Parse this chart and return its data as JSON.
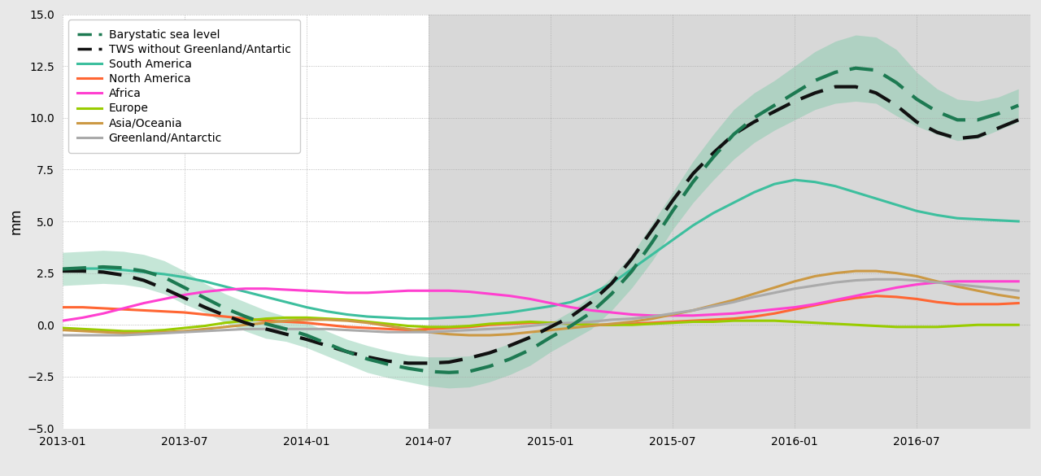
{
  "ylabel": "mm",
  "ylim": [
    -5.0,
    15.0
  ],
  "yticks": [
    -5.0,
    -2.5,
    0.0,
    2.5,
    5.0,
    7.5,
    10.0,
    12.5,
    15.0
  ],
  "xtick_labels": [
    "2013-01",
    "2013-07",
    "2014-01",
    "2014-07",
    "2015-01",
    "2015-07",
    "2016-01",
    "2016-07"
  ],
  "figure_bg_color": "#e8e8e8",
  "plot_bg_color": "#ffffff",
  "shaded_bg_color": "#d8d8d8",
  "fill_color": "#7fc9a8",
  "fill_alpha": 0.45,
  "dashed_green_color": "#1d7a52",
  "dashed_black_color": "#111111",
  "south_america_color": "#3dbf9e",
  "north_america_color": "#ff6633",
  "africa_color": "#ff40d0",
  "europe_color": "#99cc00",
  "asia_oceania_color": "#cc9944",
  "greenland_color": "#aaaaaa",
  "barystatic_mean": [
    2.7,
    2.75,
    2.8,
    2.75,
    2.6,
    2.3,
    1.8,
    1.3,
    0.8,
    0.4,
    0.05,
    -0.2,
    -0.5,
    -0.9,
    -1.3,
    -1.65,
    -1.9,
    -2.1,
    -2.25,
    -2.3,
    -2.25,
    -2.0,
    -1.65,
    -1.2,
    -0.6,
    -0.05,
    0.6,
    1.5,
    2.6,
    4.0,
    5.5,
    6.9,
    8.1,
    9.2,
    10.0,
    10.6,
    11.2,
    11.8,
    12.2,
    12.4,
    12.3,
    11.7,
    10.9,
    10.3,
    9.9,
    9.9,
    10.2,
    10.6
  ],
  "barystatic_upper": [
    3.5,
    3.55,
    3.6,
    3.55,
    3.4,
    3.1,
    2.6,
    2.0,
    1.5,
    1.1,
    0.7,
    0.4,
    0.1,
    -0.3,
    -0.7,
    -1.0,
    -1.25,
    -1.45,
    -1.55,
    -1.55,
    -1.5,
    -1.25,
    -0.9,
    -0.45,
    0.1,
    0.65,
    1.4,
    2.3,
    3.4,
    4.9,
    6.4,
    7.9,
    9.2,
    10.4,
    11.2,
    11.8,
    12.5,
    13.2,
    13.7,
    14.0,
    13.9,
    13.3,
    12.2,
    11.4,
    10.9,
    10.8,
    11.0,
    11.4
  ],
  "barystatic_lower": [
    1.9,
    1.95,
    2.0,
    1.95,
    1.8,
    1.5,
    1.0,
    0.6,
    0.1,
    -0.3,
    -0.65,
    -0.8,
    -1.1,
    -1.5,
    -1.9,
    -2.3,
    -2.55,
    -2.75,
    -2.95,
    -3.05,
    -3.0,
    -2.75,
    -2.4,
    -1.95,
    -1.3,
    -0.75,
    -0.2,
    0.7,
    1.8,
    3.1,
    4.6,
    5.9,
    7.0,
    8.0,
    8.8,
    9.4,
    9.9,
    10.4,
    10.7,
    10.8,
    10.7,
    10.1,
    9.6,
    9.2,
    8.9,
    9.0,
    9.4,
    9.8
  ],
  "tws_no_greenland": [
    2.6,
    2.6,
    2.55,
    2.4,
    2.15,
    1.75,
    1.3,
    0.85,
    0.45,
    0.1,
    -0.2,
    -0.45,
    -0.7,
    -1.0,
    -1.3,
    -1.55,
    -1.75,
    -1.85,
    -1.85,
    -1.8,
    -1.6,
    -1.35,
    -1.0,
    -0.6,
    -0.1,
    0.4,
    1.1,
    2.0,
    3.2,
    4.6,
    6.0,
    7.3,
    8.3,
    9.2,
    9.8,
    10.3,
    10.8,
    11.2,
    11.5,
    11.5,
    11.2,
    10.6,
    9.8,
    9.3,
    9.0,
    9.1,
    9.5,
    9.9
  ],
  "south_america": [
    2.7,
    2.72,
    2.72,
    2.65,
    2.55,
    2.45,
    2.3,
    2.1,
    1.85,
    1.6,
    1.35,
    1.1,
    0.85,
    0.65,
    0.5,
    0.4,
    0.35,
    0.3,
    0.3,
    0.35,
    0.4,
    0.5,
    0.6,
    0.75,
    0.9,
    1.1,
    1.5,
    2.0,
    2.7,
    3.4,
    4.1,
    4.8,
    5.4,
    5.9,
    6.4,
    6.8,
    7.0,
    6.9,
    6.7,
    6.4,
    6.1,
    5.8,
    5.5,
    5.3,
    5.15,
    5.1,
    5.05,
    5.0
  ],
  "north_america": [
    0.85,
    0.85,
    0.8,
    0.75,
    0.7,
    0.65,
    0.6,
    0.5,
    0.4,
    0.3,
    0.2,
    0.15,
    0.1,
    0.0,
    -0.1,
    -0.15,
    -0.2,
    -0.25,
    -0.2,
    -0.15,
    -0.1,
    0.0,
    0.05,
    0.1,
    0.1,
    0.05,
    0.0,
    0.0,
    0.05,
    0.1,
    0.15,
    0.2,
    0.25,
    0.3,
    0.4,
    0.55,
    0.75,
    0.95,
    1.15,
    1.3,
    1.4,
    1.35,
    1.25,
    1.1,
    1.0,
    1.0,
    1.0,
    1.05
  ],
  "africa": [
    0.2,
    0.35,
    0.55,
    0.8,
    1.05,
    1.25,
    1.45,
    1.6,
    1.7,
    1.75,
    1.75,
    1.7,
    1.65,
    1.6,
    1.55,
    1.55,
    1.6,
    1.65,
    1.65,
    1.65,
    1.6,
    1.5,
    1.4,
    1.25,
    1.05,
    0.85,
    0.7,
    0.6,
    0.5,
    0.45,
    0.45,
    0.45,
    0.5,
    0.55,
    0.65,
    0.75,
    0.85,
    1.0,
    1.2,
    1.4,
    1.6,
    1.8,
    1.95,
    2.05,
    2.1,
    2.1,
    2.1,
    2.1
  ],
  "europe": [
    -0.15,
    -0.2,
    -0.25,
    -0.3,
    -0.3,
    -0.25,
    -0.15,
    -0.05,
    0.1,
    0.2,
    0.3,
    0.35,
    0.35,
    0.3,
    0.25,
    0.15,
    0.05,
    -0.05,
    -0.1,
    -0.1,
    -0.05,
    0.05,
    0.1,
    0.15,
    0.1,
    0.05,
    0.0,
    0.0,
    0.0,
    0.05,
    0.1,
    0.15,
    0.15,
    0.2,
    0.2,
    0.2,
    0.15,
    0.1,
    0.05,
    0.0,
    -0.05,
    -0.1,
    -0.1,
    -0.1,
    -0.05,
    0.0,
    0.0,
    0.0
  ],
  "asia_oceania": [
    -0.25,
    -0.3,
    -0.35,
    -0.4,
    -0.4,
    -0.35,
    -0.3,
    -0.2,
    -0.1,
    0.0,
    0.1,
    0.2,
    0.25,
    0.25,
    0.2,
    0.1,
    -0.05,
    -0.2,
    -0.35,
    -0.45,
    -0.5,
    -0.5,
    -0.45,
    -0.35,
    -0.25,
    -0.15,
    -0.05,
    0.05,
    0.15,
    0.3,
    0.5,
    0.7,
    0.95,
    1.2,
    1.5,
    1.8,
    2.1,
    2.35,
    2.5,
    2.6,
    2.6,
    2.5,
    2.35,
    2.1,
    1.85,
    1.65,
    1.45,
    1.3
  ],
  "greenland_antarctic": [
    -0.5,
    -0.5,
    -0.5,
    -0.5,
    -0.45,
    -0.4,
    -0.35,
    -0.3,
    -0.25,
    -0.2,
    -0.2,
    -0.2,
    -0.2,
    -0.2,
    -0.25,
    -0.3,
    -0.35,
    -0.35,
    -0.35,
    -0.3,
    -0.25,
    -0.2,
    -0.15,
    -0.05,
    0.05,
    0.1,
    0.15,
    0.25,
    0.3,
    0.4,
    0.55,
    0.7,
    0.9,
    1.1,
    1.35,
    1.55,
    1.75,
    1.9,
    2.05,
    2.15,
    2.2,
    2.2,
    2.15,
    2.05,
    1.95,
    1.85,
    1.75,
    1.65
  ]
}
